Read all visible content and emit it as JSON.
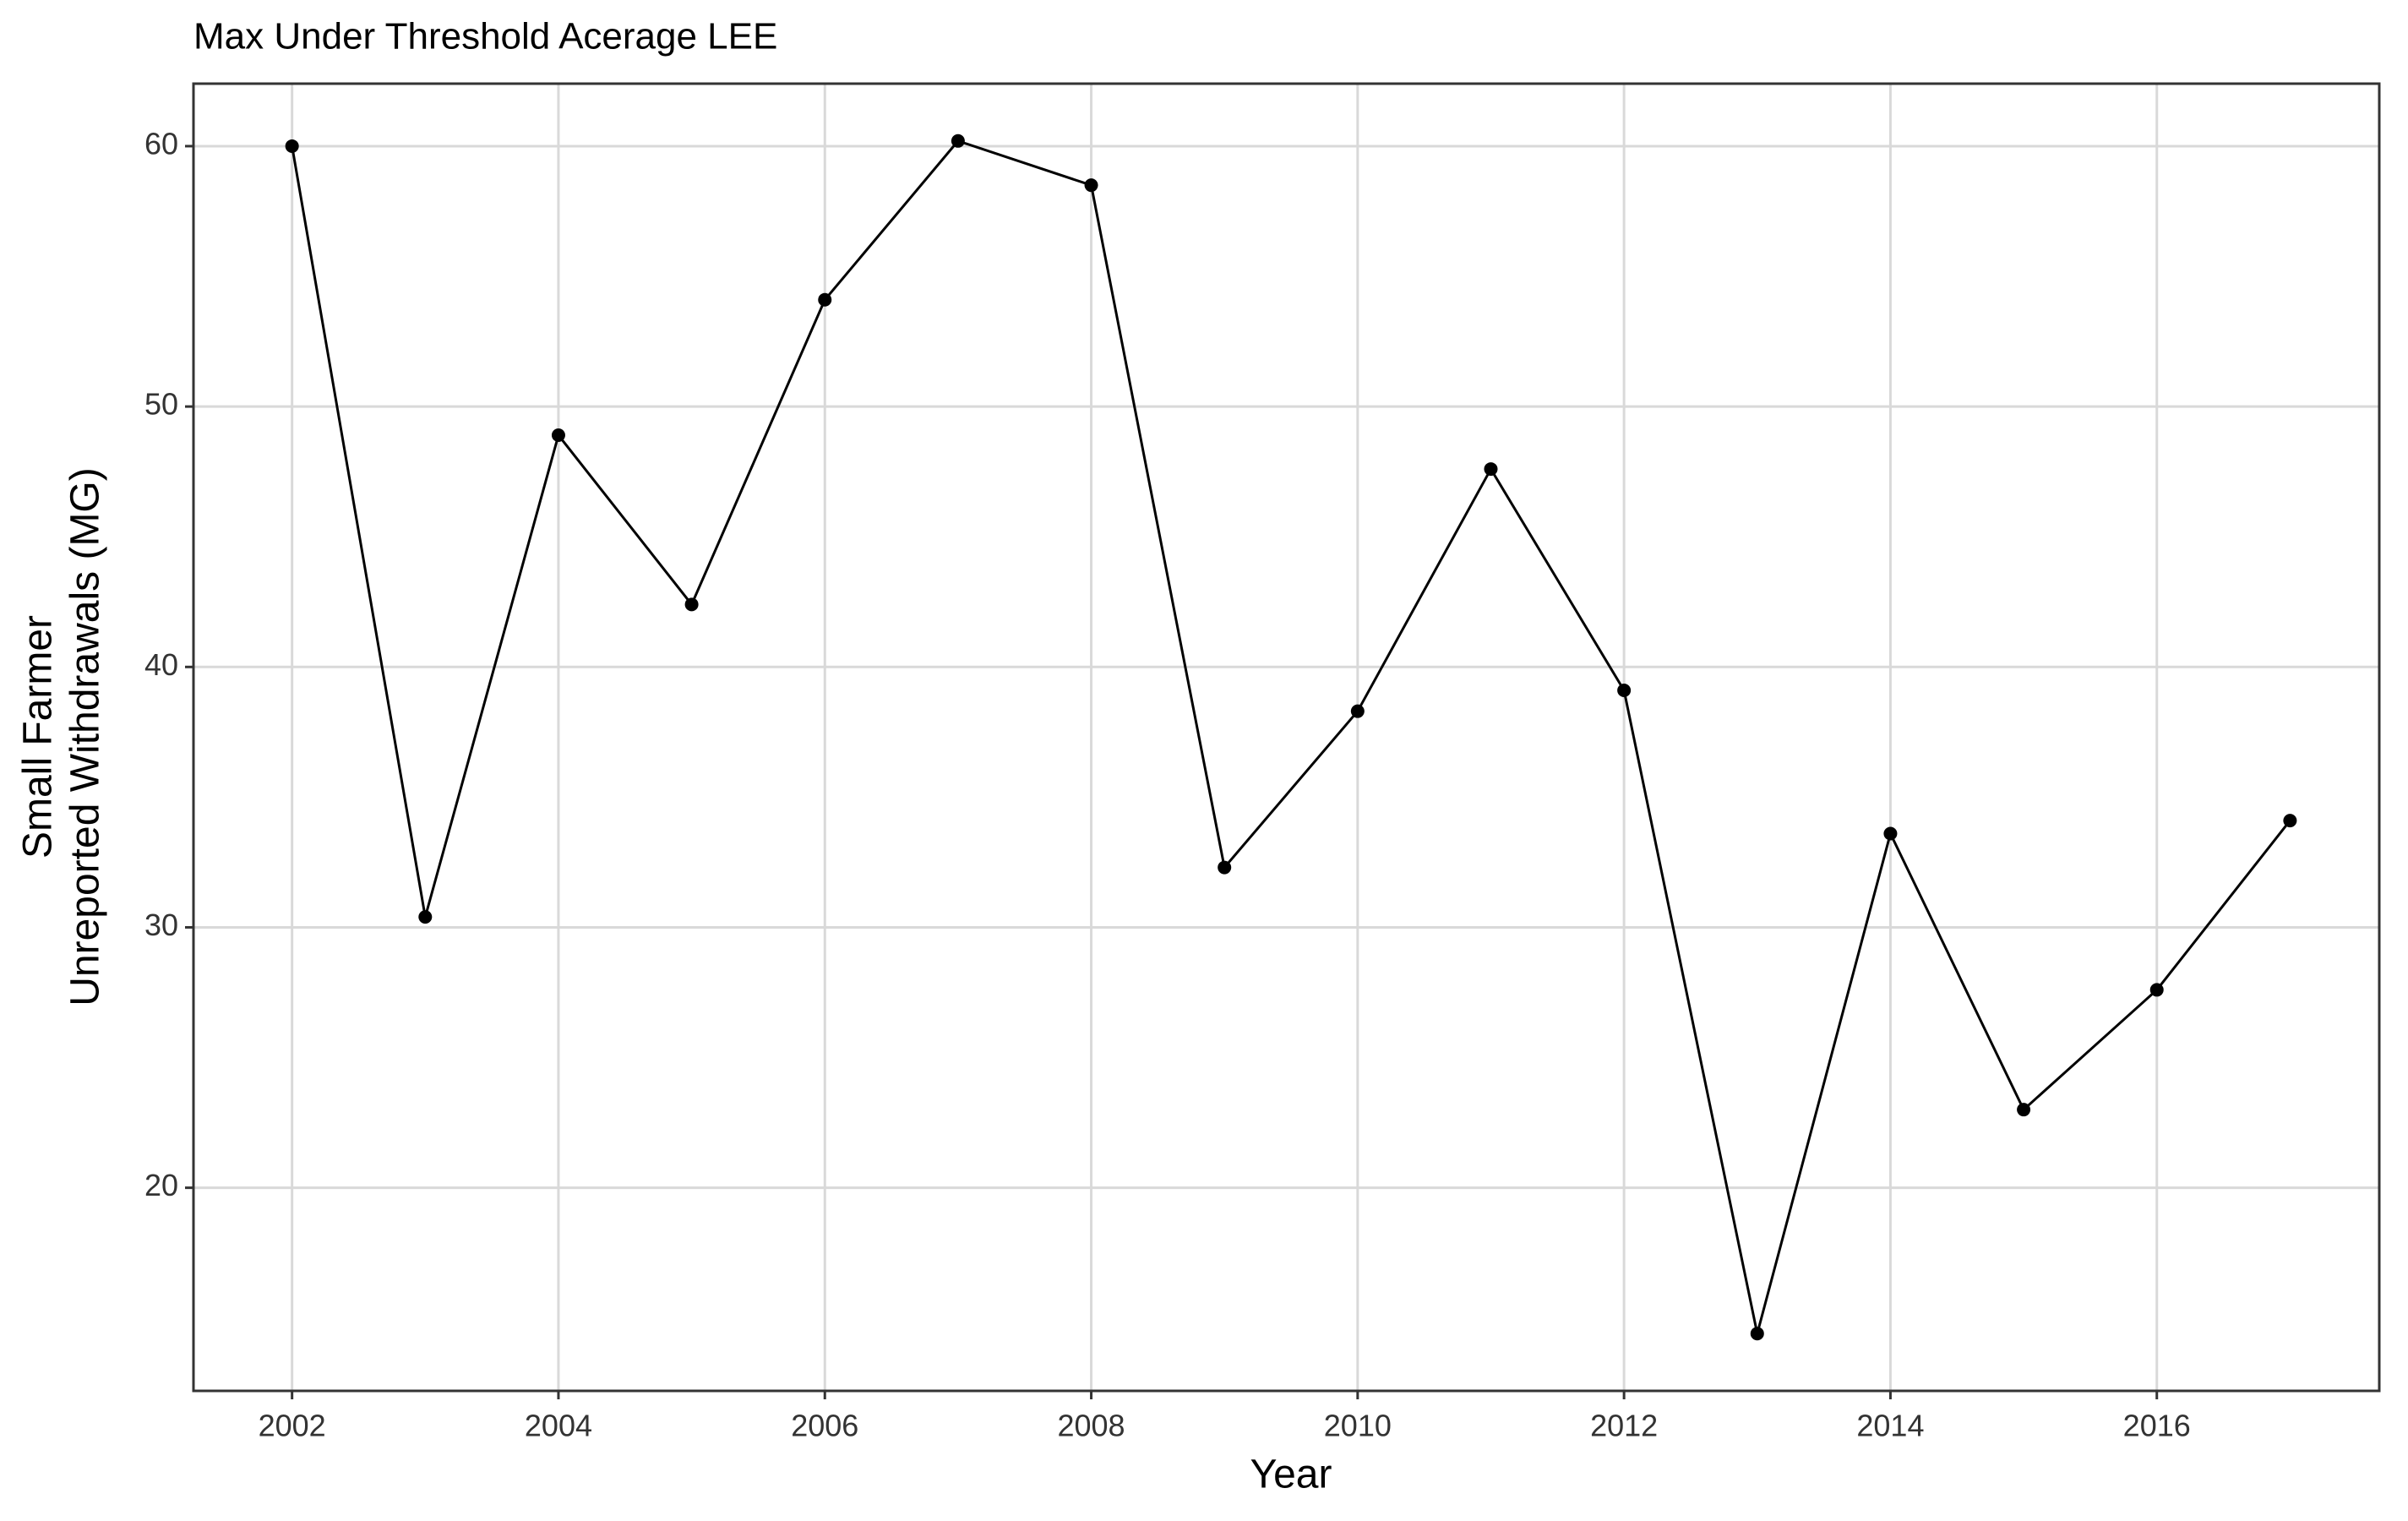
{
  "chart_data": {
    "type": "line",
    "title": "Max Under Threshold Acerage LEE",
    "xlabel": "Year",
    "ylabel": [
      "Small Farmer",
      "Unreported Withdrawals (MG)"
    ],
    "x": [
      2002,
      2003,
      2004,
      2005,
      2006,
      2007,
      2008,
      2009,
      2010,
      2011,
      2012,
      2013,
      2014,
      2015,
      2016,
      2017
    ],
    "series": [
      {
        "color": "#000000",
        "values": [
          60.0,
          30.4,
          48.9,
          42.4,
          54.1,
          60.2,
          58.5,
          32.3,
          38.3,
          47.6,
          39.1,
          14.4,
          33.6,
          23.0,
          27.6,
          34.1
        ]
      }
    ],
    "xlim": [
      2001.26,
      2017.67
    ],
    "xticks": [
      2002,
      2004,
      2006,
      2008,
      2010,
      2012,
      2014,
      2016
    ],
    "ylim": [
      12.2,
      62.4
    ],
    "yticks": [
      20,
      30,
      40,
      50,
      60
    ],
    "grid": true
  }
}
